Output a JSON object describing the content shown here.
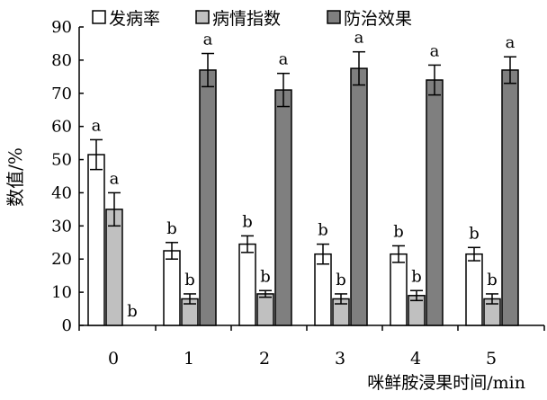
{
  "chart_data": {
    "type": "bar",
    "xlabel": "咪鲜胺浸果时间/min",
    "ylabel": "数值/%",
    "ylim": [
      0,
      90
    ],
    "yticks": [
      "0",
      "10",
      "20",
      "30",
      "40",
      "50",
      "60",
      "70",
      "80",
      "90"
    ],
    "categories": [
      "0",
      "1",
      "2",
      "3",
      "4",
      "5"
    ],
    "legend_position": "top",
    "series": [
      {
        "name": "发病率",
        "color": "#ffffff",
        "values": [
          51.5,
          22.5,
          24.5,
          21.5,
          21.5,
          21.5
        ],
        "errors": [
          4.5,
          2.5,
          2.5,
          3,
          2.5,
          2
        ],
        "labels": [
          "a",
          "b",
          "b",
          "b",
          "b",
          "b"
        ]
      },
      {
        "name": "病情指数",
        "color": "#c0c0c0",
        "values": [
          35,
          8,
          9.5,
          8,
          9,
          8
        ],
        "errors": [
          5,
          1.5,
          1,
          1.5,
          1.5,
          1.5
        ],
        "labels": [
          "a",
          "b",
          "b",
          "b",
          "b",
          "b"
        ]
      },
      {
        "name": "防治效果",
        "color": "#7f7f7f",
        "values": [
          0,
          77,
          71,
          77.5,
          74,
          77
        ],
        "errors": [
          0,
          5,
          5,
          5,
          4.5,
          4
        ],
        "labels": [
          "b",
          "a",
          "a",
          "a",
          "a",
          "a"
        ]
      }
    ]
  }
}
